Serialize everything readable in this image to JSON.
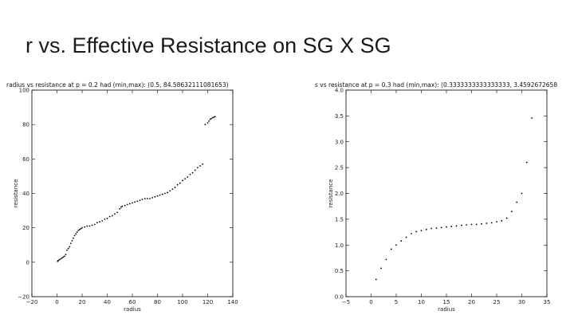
{
  "slide": {
    "title": "r vs. Effective Resistance on SG X SG"
  },
  "chart_data": [
    {
      "type": "scatter",
      "title": "radius vs resistance at p = 0.2 had (min,max): (0.5, 84.58632111081653)",
      "xlabel": "radius",
      "ylabel": "resistance",
      "xlim": [
        -20,
        140
      ],
      "ylim": [
        -20,
        100
      ],
      "xticks": [
        -20,
        0,
        20,
        40,
        60,
        80,
        100,
        120,
        140
      ],
      "yticks": [
        -20,
        0,
        20,
        40,
        60,
        80,
        100
      ],
      "grid": false,
      "x": [
        0.5,
        1,
        2,
        3,
        4,
        5,
        6,
        7,
        8,
        9,
        10,
        11,
        12,
        13,
        14,
        15,
        16,
        17,
        18,
        19,
        20,
        22,
        24,
        26,
        28,
        30,
        32,
        34,
        36,
        38,
        40,
        42,
        44,
        46,
        48,
        50,
        51,
        52,
        54,
        56,
        58,
        60,
        62,
        64,
        66,
        68,
        70,
        72,
        74,
        76,
        78,
        80,
        82,
        84,
        86,
        88,
        90,
        92,
        94,
        96,
        98,
        100,
        102,
        104,
        106,
        108,
        110,
        112,
        114,
        116,
        118,
        120,
        121,
        122,
        123,
        124,
        125,
        126
      ],
      "y": [
        0.5,
        1,
        1.5,
        2,
        2.5,
        3,
        3.5,
        4.5,
        7,
        8,
        9,
        11,
        12.5,
        14,
        15.5,
        16.5,
        17.5,
        18.5,
        19,
        19.5,
        20,
        20.5,
        21,
        21,
        21.5,
        22,
        23,
        23.5,
        24,
        25,
        25.5,
        26.5,
        27,
        28,
        29,
        31,
        32,
        32.5,
        33,
        33.5,
        34,
        34.5,
        35,
        35.5,
        36,
        36.5,
        37,
        37,
        37,
        37.5,
        38,
        38.5,
        39,
        39.5,
        40,
        40.5,
        41.5,
        42.5,
        43.5,
        45,
        46,
        47.5,
        48.5,
        49.5,
        51,
        52,
        53.5,
        55,
        56,
        57,
        80,
        81,
        82,
        83,
        83.5,
        84,
        84.3,
        84.586
      ]
    },
    {
      "type": "scatter",
      "title": "s vs resistance at p = 0.3 had (min,max): (0.3333333333333333, 3.4592672658",
      "xlabel": "radius",
      "ylabel": "resistance",
      "xlim": [
        -5,
        35
      ],
      "ylim": [
        0.0,
        4.0
      ],
      "xticks": [
        -5,
        0,
        5,
        10,
        15,
        20,
        25,
        30,
        35
      ],
      "yticks": [
        "0.0",
        "0.5",
        "1.0",
        "1.5",
        "2.0",
        "2.5",
        "3.0",
        "3.5",
        "4.0"
      ],
      "grid": false,
      "x": [
        1,
        2,
        3,
        4,
        5,
        6,
        7,
        8,
        9,
        10,
        11,
        12,
        13,
        14,
        15,
        16,
        17,
        18,
        19,
        20,
        21,
        22,
        23,
        24,
        25,
        26,
        27,
        28,
        29,
        30,
        31,
        32
      ],
      "y": [
        0.333,
        0.55,
        0.72,
        0.92,
        1.0,
        1.08,
        1.15,
        1.22,
        1.26,
        1.28,
        1.3,
        1.32,
        1.33,
        1.34,
        1.35,
        1.36,
        1.37,
        1.38,
        1.39,
        1.4,
        1.4,
        1.41,
        1.42,
        1.43,
        1.45,
        1.47,
        1.52,
        1.65,
        1.83,
        2.0,
        2.6,
        3.459
      ]
    }
  ]
}
